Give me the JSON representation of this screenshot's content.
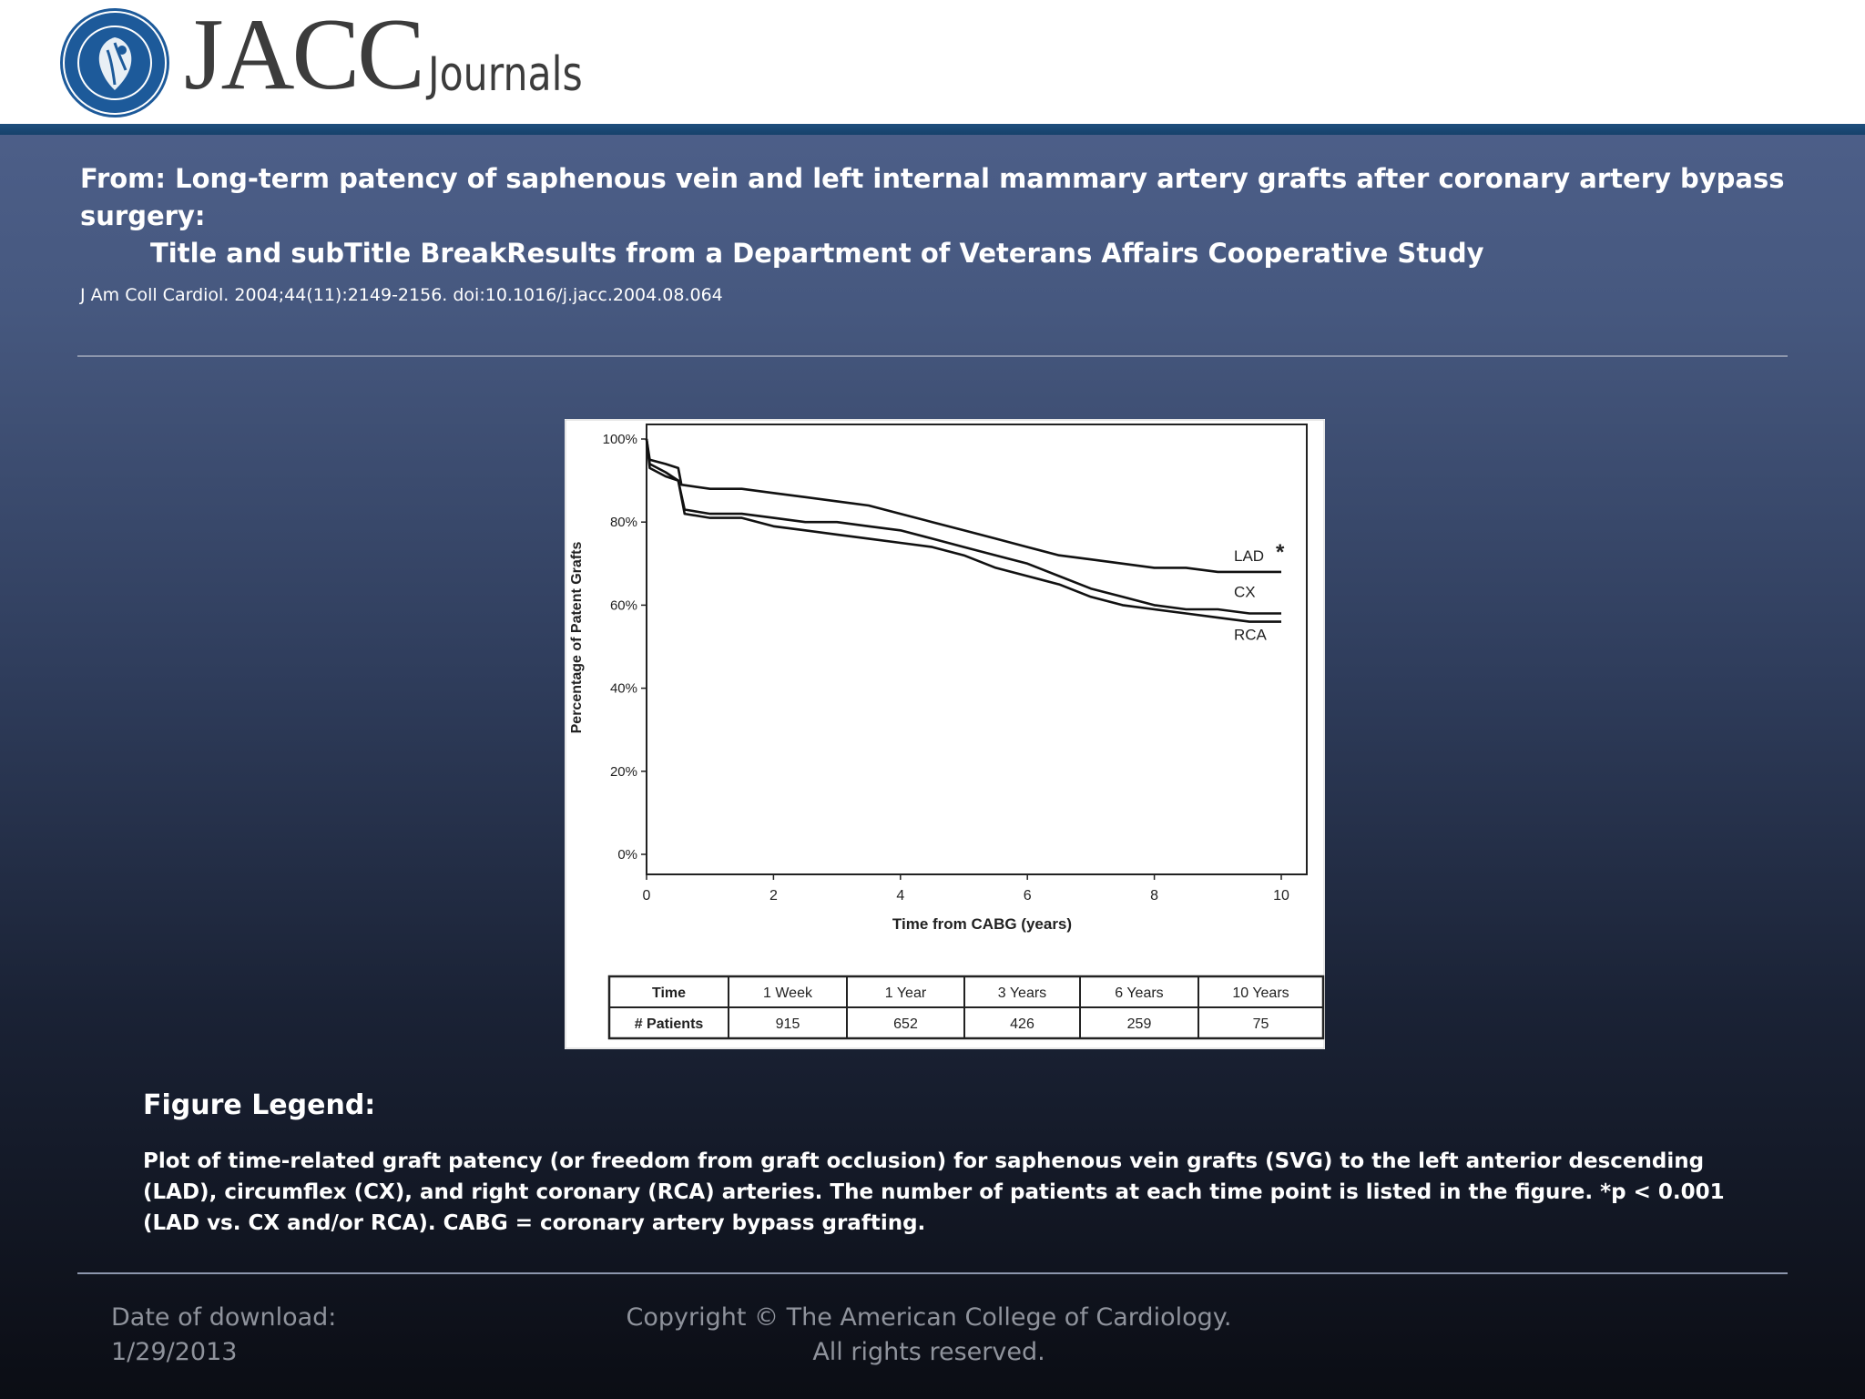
{
  "header": {
    "logo_text": "JACC",
    "logo_subtext": "Journals",
    "seal_text": "AMERICAN COLLEGE OF CARDIOLOGY FOUNDATION"
  },
  "article": {
    "title_line1": "From: Long-term patency of saphenous vein and left internal mammary artery grafts after coronary artery bypass surgery:",
    "title_line2": "Title and subTitle BreakResults from a Department of Veterans Affairs Cooperative Study",
    "citation": "J Am Coll Cardiol. 2004;44(11):2149-2156. doi:10.1016/j.jacc.2004.08.064"
  },
  "chart_data": {
    "type": "line",
    "title": "",
    "xlabel": "Time from CABG (years)",
    "ylabel": "Percentage of Patent Grafts",
    "xlim": [
      0,
      10
    ],
    "ylim": [
      0,
      100
    ],
    "xticks": [
      0,
      2,
      4,
      6,
      8,
      10
    ],
    "yticks": [
      0,
      20,
      40,
      60,
      80,
      100
    ],
    "ytick_labels": [
      "0%",
      "20%",
      "40%",
      "60%",
      "80%",
      "100%"
    ],
    "grid": false,
    "series": [
      {
        "name": "LAD",
        "annotation": "*",
        "x": [
          0,
          0.05,
          0.3,
          0.5,
          0.55,
          1.0,
          1.5,
          2.0,
          2.5,
          3.0,
          3.5,
          4.0,
          4.5,
          5.0,
          5.5,
          6.0,
          6.5,
          7.0,
          7.5,
          8.0,
          8.5,
          9.0,
          9.5,
          10.0
        ],
        "y": [
          100,
          95,
          94,
          93,
          89,
          88,
          88,
          87,
          86,
          85,
          84,
          82,
          80,
          78,
          76,
          74,
          72,
          71,
          70,
          69,
          69,
          68,
          68,
          68
        ]
      },
      {
        "name": "CX",
        "x": [
          0,
          0.05,
          0.3,
          0.5,
          0.6,
          1.0,
          1.5,
          2.0,
          2.5,
          3.0,
          3.5,
          4.0,
          4.5,
          5.0,
          5.5,
          6.0,
          6.5,
          7.0,
          7.5,
          8.0,
          8.5,
          9.0,
          9.5,
          10.0
        ],
        "y": [
          100,
          94,
          92,
          90,
          83,
          82,
          82,
          81,
          80,
          80,
          79,
          78,
          76,
          74,
          72,
          70,
          67,
          64,
          62,
          60,
          59,
          59,
          58,
          58
        ]
      },
      {
        "name": "RCA",
        "x": [
          0,
          0.05,
          0.3,
          0.5,
          0.6,
          1.0,
          1.5,
          2.0,
          2.5,
          3.0,
          3.5,
          4.0,
          4.5,
          5.0,
          5.5,
          6.0,
          6.5,
          7.0,
          7.5,
          8.0,
          8.5,
          9.0,
          9.5,
          10.0
        ],
        "y": [
          100,
          93,
          91,
          90,
          82,
          81,
          81,
          79,
          78,
          77,
          76,
          75,
          74,
          72,
          69,
          67,
          65,
          62,
          60,
          59,
          58,
          57,
          56,
          56
        ]
      }
    ],
    "table": {
      "columns": [
        "Time",
        "1 Week",
        "1 Year",
        "3 Years",
        "6 Years",
        "10 Years"
      ],
      "rows": [
        [
          "# Patients",
          "915",
          "652",
          "426",
          "259",
          "75"
        ]
      ]
    },
    "colors": {
      "line": "#111111",
      "axis": "#222222",
      "background": "#ffffff"
    }
  },
  "legend": {
    "heading": "Figure Legend:",
    "text": "Plot of time-related graft patency (or freedom from graft occlusion) for saphenous vein grafts (SVG) to the left anterior descending (LAD), circumflex (CX), and right coronary (RCA) arteries. The number of patients at each time point is listed in the figure. *p < 0.001 (LAD vs. CX and/or RCA). CABG = coronary artery bypass grafting."
  },
  "footer": {
    "date_label": "Date of download:",
    "date_value": "1/29/2013",
    "copyright_line1": "Copyright © The American College of Cardiology.",
    "copyright_line2": "All rights reserved."
  },
  "colors": {
    "header_band": "#1f4f7d",
    "seal_blue": "#1d5a9a",
    "logo_gray": "#3c3c3c",
    "text_white": "#ffffff",
    "footer_gray": "#8f939c",
    "rule": "#8d97ad"
  }
}
